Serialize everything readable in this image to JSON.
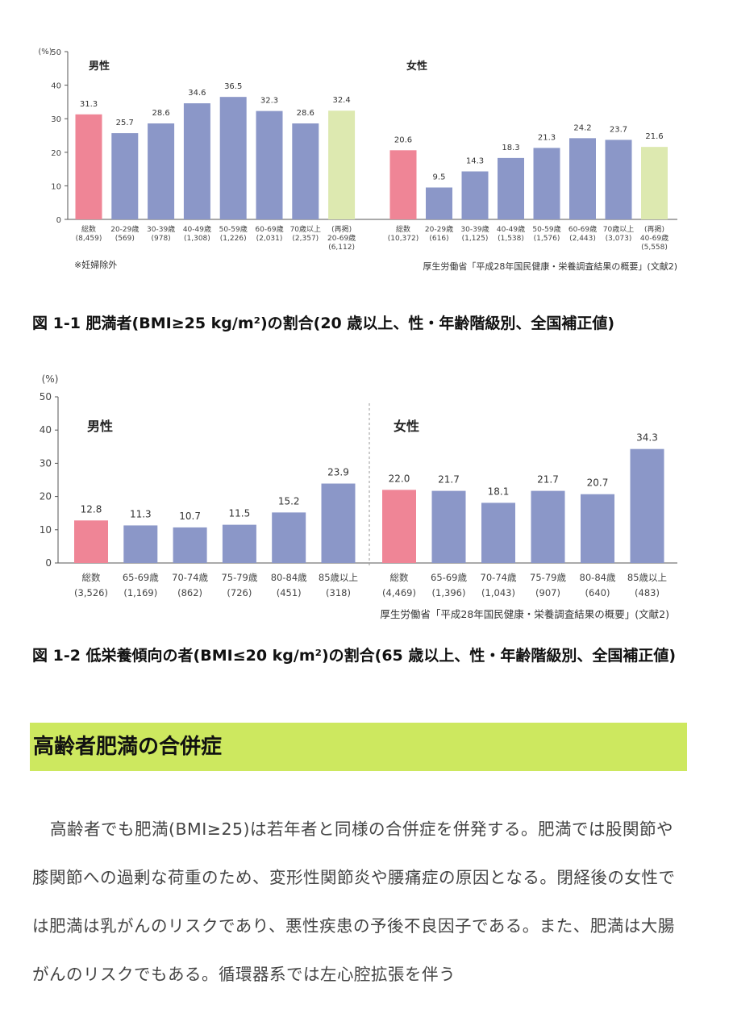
{
  "figure1": {
    "chart_data": {
      "type": "bar",
      "yunit": "(%)",
      "ylim": [
        0,
        50
      ],
      "yticks": [
        0,
        10,
        20,
        30,
        40,
        50
      ],
      "panels": [
        {
          "name": "男性",
          "categories": [
            {
              "label": "総数",
              "n": "(8,459)"
            },
            {
              "label": "20-29歳",
              "n": "(569)"
            },
            {
              "label": "30-39歳",
              "n": "(978)"
            },
            {
              "label": "40-49歳",
              "n": "(1,308)"
            },
            {
              "label": "50-59歳",
              "n": "(1,226)"
            },
            {
              "label": "60-69歳",
              "n": "(2,031)"
            },
            {
              "label": "70歳以上",
              "n": "(2,357)"
            },
            {
              "label": "(再掲)",
              "label2": "20-69歳",
              "n": "(6,112)"
            }
          ],
          "values": [
            31.3,
            25.7,
            28.6,
            34.6,
            36.5,
            32.3,
            28.6,
            32.4
          ],
          "value_labels": [
            "31.3",
            "25.7",
            "28.6",
            "34.6",
            "36.5",
            "32.3",
            "28.6",
            "32.4"
          ],
          "bar_colors": [
            "#ef8596",
            "#8b97c8",
            "#8b97c8",
            "#8b97c8",
            "#8b97c8",
            "#8b97c8",
            "#8b97c8",
            "#dde9b0"
          ]
        },
        {
          "name": "女性",
          "categories": [
            {
              "label": "総数",
              "n": "(10,372)"
            },
            {
              "label": "20-29歳",
              "n": "(616)"
            },
            {
              "label": "30-39歳",
              "n": "(1,125)"
            },
            {
              "label": "40-49歳",
              "n": "(1,538)"
            },
            {
              "label": "50-59歳",
              "n": "(1,576)"
            },
            {
              "label": "60-69歳",
              "n": "(2,443)"
            },
            {
              "label": "70歳以上",
              "n": "(3,073)"
            },
            {
              "label": "(再掲)",
              "label2": "40-69歳",
              "n": "(5,558)"
            }
          ],
          "values": [
            20.6,
            9.5,
            14.3,
            18.3,
            21.3,
            24.2,
            23.7,
            21.6
          ],
          "value_labels": [
            "20.6",
            "9.5",
            "14.3",
            "18.3",
            "21.3",
            "24.2",
            "23.7",
            "21.6"
          ],
          "bar_colors": [
            "#ef8596",
            "#8b97c8",
            "#8b97c8",
            "#8b97c8",
            "#8b97c8",
            "#8b97c8",
            "#8b97c8",
            "#dde9b0"
          ]
        }
      ],
      "note": "※妊婦除外",
      "source": "厚生労働省「平成28年国民健康・栄養調査結果の概要」(文献2)"
    },
    "caption": "図 1-1 肥満者(BMI≥25 kg/m²)の割合(20 歳以上、性・年齢階級別、全国補正値)"
  },
  "figure2": {
    "chart_data": {
      "type": "bar",
      "yunit": "(%)",
      "ylim": [
        0,
        50
      ],
      "yticks": [
        0,
        10,
        20,
        30,
        40,
        50
      ],
      "panels": [
        {
          "name": "男性",
          "categories": [
            {
              "label": "総数",
              "n": "(3,526)"
            },
            {
              "label": "65-69歳",
              "n": "(1,169)"
            },
            {
              "label": "70-74歳",
              "n": "(862)"
            },
            {
              "label": "75-79歳",
              "n": "(726)"
            },
            {
              "label": "80-84歳",
              "n": "(451)"
            },
            {
              "label": "85歳以上",
              "n": "(318)"
            }
          ],
          "values": [
            12.8,
            11.3,
            10.7,
            11.5,
            15.2,
            23.9
          ],
          "value_labels": [
            "12.8",
            "11.3",
            "10.7",
            "11.5",
            "15.2",
            "23.9"
          ],
          "bar_colors": [
            "#ef8596",
            "#8b97c8",
            "#8b97c8",
            "#8b97c8",
            "#8b97c8",
            "#8b97c8"
          ]
        },
        {
          "name": "女性",
          "categories": [
            {
              "label": "総数",
              "n": "(4,469)"
            },
            {
              "label": "65-69歳",
              "n": "(1,396)"
            },
            {
              "label": "70-74歳",
              "n": "(1,043)"
            },
            {
              "label": "75-79歳",
              "n": "(907)"
            },
            {
              "label": "80-84歳",
              "n": "(640)"
            },
            {
              "label": "85歳以上",
              "n": "(483)"
            }
          ],
          "values": [
            22.0,
            21.7,
            18.1,
            21.7,
            20.7,
            34.3
          ],
          "value_labels": [
            "22.0",
            "21.7",
            "18.1",
            "21.7",
            "20.7",
            "34.3"
          ],
          "bar_colors": [
            "#ef8596",
            "#8b97c8",
            "#8b97c8",
            "#8b97c8",
            "#8b97c8",
            "#8b97c8"
          ]
        }
      ],
      "source": "厚生労働省「平成28年国民健康・栄養調査結果の概要」(文献2)"
    },
    "caption": "図 1-2 低栄養傾向の者(BMI≤20 kg/m²)の割合(65 歳以上、性・年齢階級別、全国補正値)"
  },
  "section": {
    "title": "高齢者肥満の合併症"
  },
  "body": {
    "text": "高齢者でも肥満(BMI≥25)は若年者と同様の合併症を併発する。肥満では股関節や膝関節への過剰な荷重のため、変形性関節炎や腰痛症の原因となる。閉経後の女性では肥満は乳がんのリスクであり、悪性疾患の予後不良因子である。また、肥満は大腸がんのリスクでもある。循環器系では左心腔拡張を伴う"
  },
  "colors": {
    "section_bar": "#cde85f",
    "bar_total": "#ef8596",
    "bar_age": "#8b97c8",
    "bar_reprint": "#dde9b0"
  }
}
